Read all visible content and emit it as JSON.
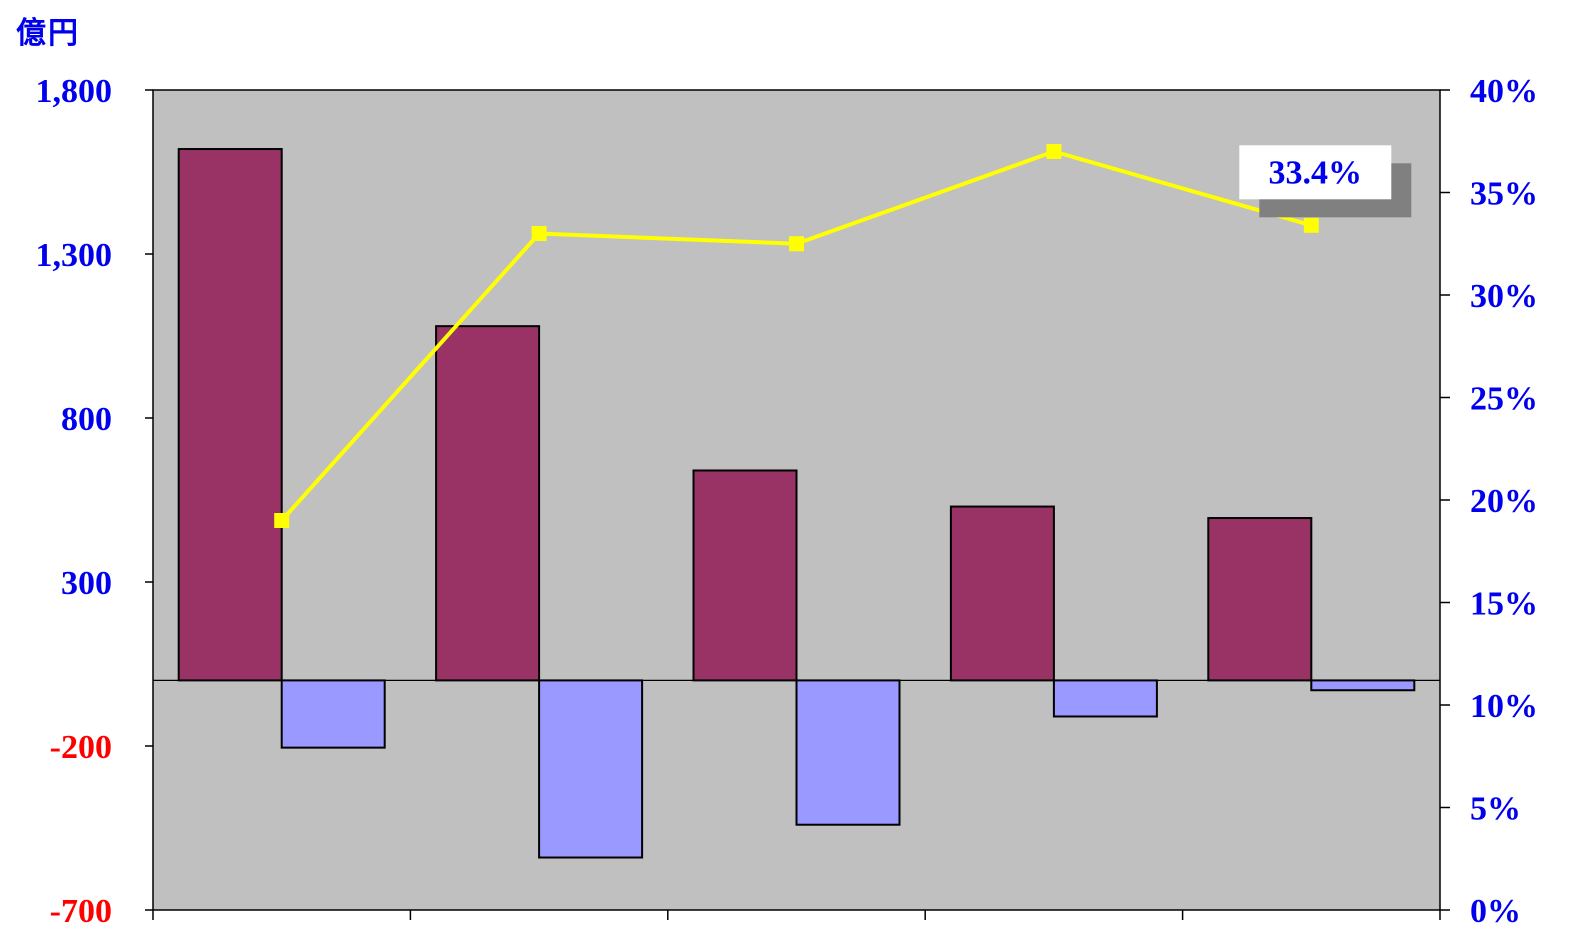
{
  "unit_label": "億円",
  "colors": {
    "plot_bg": "#c0c0c0",
    "bar_primary": "#993366",
    "bar_secondary": "#9999ff",
    "line": "#ffff00",
    "axis_text_blue": "#0000ee",
    "axis_text_red": "#ff0000"
  },
  "chart_data": {
    "type": "bar",
    "title": "",
    "categories": [
      "",
      "",
      "",
      "",
      ""
    ],
    "series": [
      {
        "values": [
          1620,
          1080,
          640,
          530,
          495
        ]
      },
      {
        "values": [
          -205,
          -540,
          -440,
          -110,
          -30
        ]
      },
      {
        "type": "line",
        "axis": "right",
        "values": [
          0.19,
          0.33,
          0.325,
          0.37,
          0.334
        ]
      }
    ],
    "left_axis": {
      "ylim": [
        -700,
        1800
      ],
      "ticks": [
        1800,
        1300,
        800,
        300,
        -200,
        -700
      ],
      "tick_labels": [
        "1,800",
        "1,300",
        "800",
        "300",
        "-200",
        "-700"
      ],
      "tick_colors": [
        "blue",
        "blue",
        "blue",
        "blue",
        "red",
        "red"
      ]
    },
    "right_axis": {
      "ylim": [
        0,
        0.4
      ],
      "ticks": [
        0.4,
        0.35,
        0.3,
        0.25,
        0.2,
        0.15,
        0.1,
        0.05,
        0.0
      ],
      "tick_labels": [
        "40%",
        "35%",
        "30%",
        "25%",
        "20%",
        "15%",
        "10%",
        "5%",
        "0%"
      ]
    },
    "annotation": {
      "text": "33.4%",
      "series_index": 2,
      "point_index": 4
    },
    "grid": false,
    "legend": "none"
  }
}
